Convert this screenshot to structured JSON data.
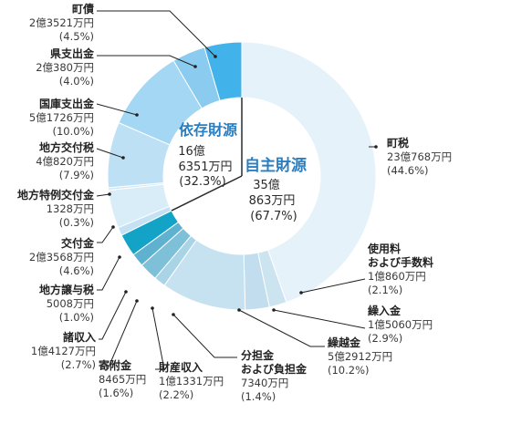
{
  "chart_data": {
    "type": "pie",
    "title": "",
    "groups": [
      {
        "key": "own",
        "name": "自主財源",
        "amount": "35億",
        "amount2": "863万円",
        "percent_label": "(67.7%)",
        "percent": 67.7
      },
      {
        "key": "dep",
        "name": "依存財源",
        "amount": "16億",
        "amount2": "6351万円",
        "percent_label": "(32.3%)",
        "percent": 32.3
      }
    ],
    "slices": [
      {
        "group": "own",
        "name": [
          "町税"
        ],
        "amount": "23億768万円",
        "percent_label": "(44.6%)",
        "value": 44.6,
        "color": "#e6f2fa"
      },
      {
        "group": "own",
        "name": [
          "使用料",
          "および手数料"
        ],
        "amount": "1億860万円",
        "percent_label": "(2.1%)",
        "value": 2.1,
        "color": "#cce3f0"
      },
      {
        "group": "own",
        "name": [
          "繰入金"
        ],
        "amount": "1億5060万円",
        "percent_label": "(2.9%)",
        "value": 2.9,
        "color": "#c2deee"
      },
      {
        "group": "own",
        "name": [
          "繰越金"
        ],
        "amount": "5億2912万円",
        "percent_label": "(10.2%)",
        "value": 10.2,
        "color": "#c6e2f1"
      },
      {
        "group": "own",
        "name": [
          "分担金",
          "および負担金"
        ],
        "amount": "7340万円",
        "percent_label": "(1.4%)",
        "value": 1.4,
        "color": "#a9d4e6"
      },
      {
        "group": "own",
        "name": [
          "財産収入"
        ],
        "amount": "1億1331万円",
        "percent_label": "(2.2%)",
        "value": 2.2,
        "color": "#7dc0d8"
      },
      {
        "group": "own",
        "name": [
          "寄附金"
        ],
        "amount": "8465万円",
        "percent_label": "(1.6%)",
        "value": 1.6,
        "color": "#5fb2cf"
      },
      {
        "group": "own",
        "name": [
          "諸収入"
        ],
        "amount": "1億4127万円",
        "percent_label": "(2.7%)",
        "value": 2.7,
        "color": "#13a3c7"
      },
      {
        "group": "dep",
        "name": [
          "地方譲与税"
        ],
        "amount": "5008万円",
        "percent_label": "(1.0%)",
        "value": 1.0,
        "color": "#c4e2f3"
      },
      {
        "group": "dep",
        "name": [
          "交付金"
        ],
        "amount": "2億3568万円",
        "percent_label": "(4.6%)",
        "value": 4.6,
        "color": "#d9edf8"
      },
      {
        "group": "dep",
        "name": [
          "地方特例交付金"
        ],
        "amount": "1328万円",
        "percent_label": "(0.3%)",
        "value": 0.3,
        "color": "#cfe7f5"
      },
      {
        "group": "dep",
        "name": [
          "地方交付税"
        ],
        "amount": "4億820万円",
        "percent_label": "(7.9%)",
        "value": 7.9,
        "color": "#bde0f4"
      },
      {
        "group": "dep",
        "name": [
          "国庫支出金"
        ],
        "amount": "5億1726万円",
        "percent_label": "(10.0%)",
        "value": 10.0,
        "color": "#a4d7f3"
      },
      {
        "group": "dep",
        "name": [
          "県支出金"
        ],
        "amount": "2億380万円",
        "percent_label": "(4.0%)",
        "value": 4.0,
        "color": "#8bcbef"
      },
      {
        "group": "dep",
        "name": [
          "町債"
        ],
        "amount": "2億3521万円",
        "percent_label": "(4.5%)",
        "value": 4.5,
        "color": "#42b3ea"
      }
    ]
  }
}
